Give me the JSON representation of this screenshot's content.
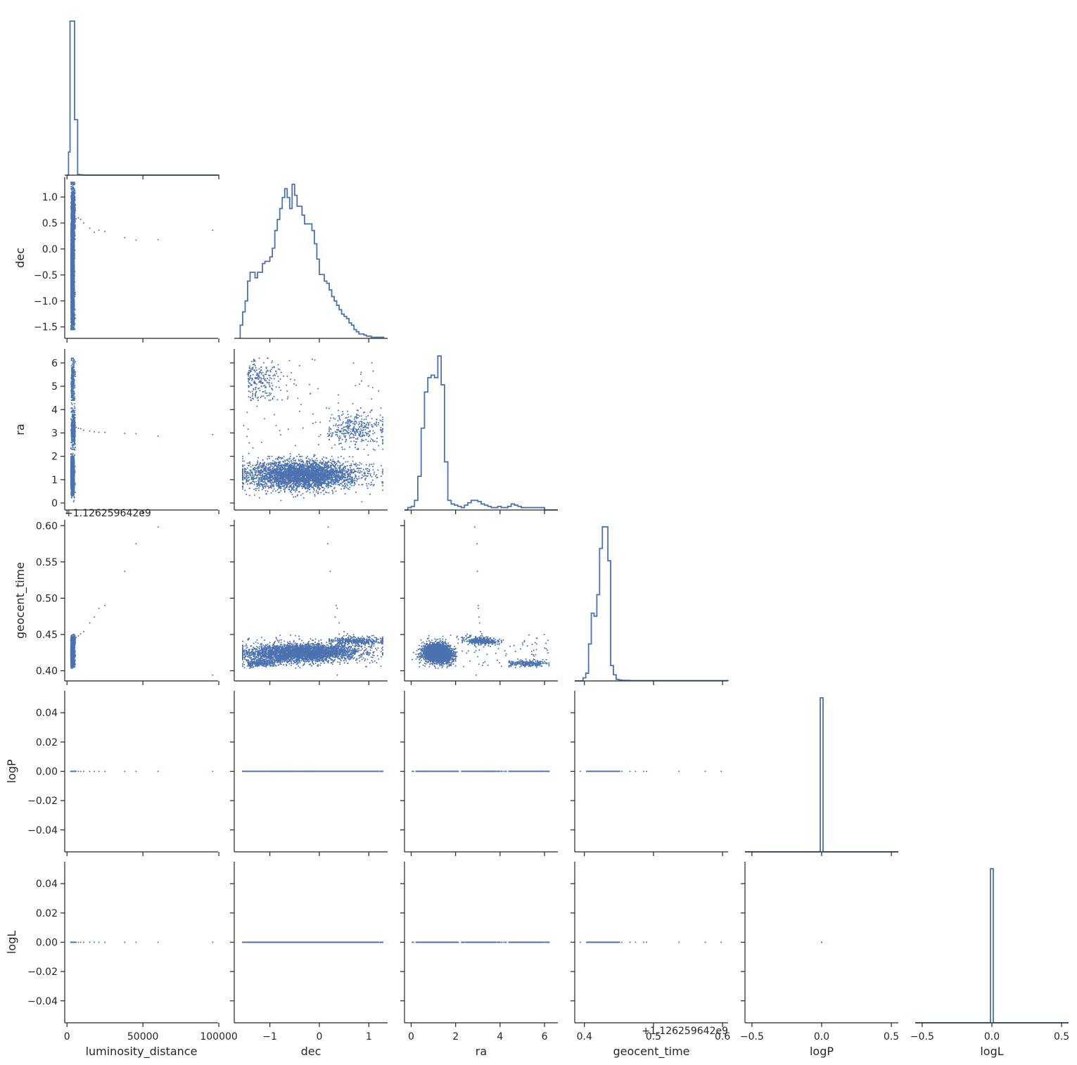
{
  "chart_data": {
    "type": "scatter",
    "layout": "corner-pairplot",
    "variables": [
      "luminosity_distance",
      "dec",
      "ra",
      "geocent_time",
      "logP",
      "logL"
    ],
    "marker_color": "#4c72b0",
    "grid": false,
    "axes": {
      "luminosity_distance": {
        "label": "luminosity_distance",
        "range": [
          -1500,
          99500
        ],
        "ticks": [
          0,
          50000,
          100000
        ],
        "tick_labels": [
          "0",
          "50000",
          "100000"
        ]
      },
      "dec": {
        "label": "dec",
        "range": [
          -1.72,
          1.38
        ],
        "ticks": [
          -1.5,
          -1.0,
          -0.5,
          0.0,
          0.5,
          1.0
        ],
        "tick_labels": [
          "−1.5",
          "−1.0",
          "−0.5",
          "0.0",
          "0.5",
          "1.0"
        ],
        "x_ticks": [
          -1,
          0,
          1
        ],
        "x_tick_labels": [
          "−1",
          "0",
          "1"
        ]
      },
      "ra": {
        "label": "ra",
        "range": [
          -0.3,
          6.6
        ],
        "ticks": [
          0,
          1,
          2,
          3,
          4,
          5,
          6
        ],
        "tick_labels": [
          "0",
          "1",
          "2",
          "3",
          "4",
          "5",
          "6"
        ],
        "x_ticks": [
          0,
          2,
          4,
          6
        ],
        "x_tick_labels": [
          "0",
          "2",
          "4",
          "6"
        ]
      },
      "geocent_time": {
        "label": "geocent_time",
        "offset_label": "+1.126259642e9",
        "range": [
          0.386,
          0.608
        ],
        "ticks": [
          0.4,
          0.45,
          0.5,
          0.55,
          0.6
        ],
        "tick_labels": [
          "0.40",
          "0.45",
          "0.50",
          "0.55",
          "0.60"
        ],
        "x_ticks": [
          0.4,
          0.5,
          0.6
        ],
        "x_tick_labels": [
          "0.4",
          "0.5",
          "0.6"
        ]
      },
      "logP": {
        "label": "logP",
        "range": [
          -0.055,
          0.055
        ],
        "ticks": [
          -0.04,
          -0.02,
          0.0,
          0.02,
          0.04
        ],
        "tick_labels": [
          "−0.04",
          "−0.02",
          "0.00",
          "0.02",
          "0.04"
        ],
        "x_ticks": [
          -0.5,
          0.0,
          0.5
        ],
        "x_tick_labels": [
          "−0.5",
          "0.0",
          "0.5"
        ],
        "x_range": [
          -0.55,
          0.55
        ]
      },
      "logL": {
        "label": "logL",
        "range": [
          -0.055,
          0.055
        ],
        "ticks": [
          -0.04,
          -0.02,
          0.0,
          0.02,
          0.04
        ],
        "tick_labels": [
          "−0.04",
          "−0.02",
          "0.00",
          "0.02",
          "0.04"
        ],
        "x_ticks": [
          -0.5,
          0.0,
          0.5
        ],
        "x_tick_labels": [
          "−0.5",
          "0.0",
          "0.5"
        ],
        "x_range": [
          -0.55,
          0.55
        ]
      }
    },
    "histograms": {
      "luminosity_distance": {
        "bin_edges": [
          0,
          1000,
          2000,
          3000,
          4000,
          5000,
          6000,
          7000,
          8000,
          9000,
          10000,
          11000,
          100000
        ],
        "counts": [
          0,
          0.15,
          1.0,
          1.0,
          1.0,
          0.36,
          0.36,
          0.005,
          0.003,
          0.002,
          0.001,
          0.0005
        ]
      },
      "dec": {
        "bin_edges": [
          -1.6,
          -1.55,
          -1.5,
          -1.45,
          -1.4,
          -1.35,
          -1.3,
          -1.25,
          -1.2,
          -1.15,
          -1.1,
          -1.05,
          -1.0,
          -0.95,
          -0.9,
          -0.85,
          -0.8,
          -0.75,
          -0.7,
          -0.65,
          -0.6,
          -0.55,
          -0.5,
          -0.45,
          -0.4,
          -0.35,
          -0.3,
          -0.25,
          -0.2,
          -0.15,
          -0.1,
          -0.05,
          0.0,
          0.05,
          0.1,
          0.15,
          0.2,
          0.25,
          0.3,
          0.35,
          0.4,
          0.45,
          0.5,
          0.55,
          0.6,
          0.65,
          0.7,
          0.75,
          0.8,
          0.85,
          0.9,
          0.95,
          1.0,
          1.05,
          1.1,
          1.15,
          1.2,
          1.25,
          1.3
        ],
        "counts": [
          0.12,
          0.24,
          0.34,
          0.52,
          0.6,
          0.6,
          0.55,
          0.6,
          0.6,
          0.68,
          0.7,
          0.7,
          0.74,
          0.82,
          0.98,
          1.08,
          1.18,
          1.28,
          1.36,
          1.28,
          1.18,
          1.4,
          1.3,
          1.2,
          1.2,
          1.12,
          1.04,
          1.04,
          1.04,
          0.98,
          0.86,
          0.72,
          0.58,
          0.58,
          0.52,
          0.5,
          0.44,
          0.38,
          0.34,
          0.3,
          0.26,
          0.22,
          0.2,
          0.18,
          0.14,
          0.12,
          0.08,
          0.06,
          0.04,
          0.04,
          0.03,
          0.02,
          0.02,
          0.01,
          0.01,
          0.01,
          0.01,
          0.01
        ]
      },
      "ra": {
        "bin_edges": [
          -0.3,
          -0.15,
          0.0,
          0.15,
          0.3,
          0.45,
          0.6,
          0.75,
          0.9,
          1.05,
          1.2,
          1.35,
          1.5,
          1.65,
          1.8,
          1.95,
          2.1,
          2.25,
          2.4,
          2.55,
          2.7,
          2.85,
          3.0,
          3.15,
          3.3,
          3.45,
          3.6,
          3.75,
          3.9,
          4.05,
          4.2,
          4.35,
          4.5,
          4.65,
          4.8,
          4.95,
          5.1,
          5.25,
          5.4,
          5.55,
          5.7,
          5.85,
          6.0,
          6.15,
          6.3,
          6.6
        ],
        "counts": [
          0,
          0.02,
          0.03,
          0.08,
          0.28,
          0.68,
          0.98,
          1.1,
          1.12,
          1.1,
          1.28,
          1.04,
          0.4,
          0.08,
          0.05,
          0.04,
          0.03,
          0.02,
          0.04,
          0.06,
          0.08,
          0.08,
          0.07,
          0.05,
          0.04,
          0.03,
          0.02,
          0.02,
          0.03,
          0.02,
          0.02,
          0.03,
          0.05,
          0.04,
          0.03,
          0.02,
          0.02,
          0.02,
          0.02,
          0.02,
          0.02,
          0.02,
          0.0,
          0.0,
          0.0
        ]
      },
      "geocent_time": {
        "bin_edges": [
          0.386,
          0.398,
          0.402,
          0.406,
          0.41,
          0.414,
          0.418,
          0.422,
          0.426,
          0.43,
          0.434,
          0.438,
          0.442,
          0.446,
          0.45,
          0.454,
          0.466,
          0.608
        ],
        "counts": [
          0,
          0.02,
          0.05,
          0.24,
          0.44,
          0.42,
          0.56,
          0.86,
          1.0,
          1.0,
          0.78,
          0.1,
          0.04,
          0.01,
          0.006,
          0.004,
          0.002
        ]
      },
      "logP": {
        "bin_edges": [
          -0.55,
          -0.01,
          0.01,
          0.55
        ],
        "counts": [
          0,
          1.0,
          0
        ]
      },
      "logL": {
        "bin_edges": [
          -0.55,
          -0.01,
          0.01,
          0.55
        ],
        "counts": [
          0,
          1.0,
          0
        ]
      }
    }
  }
}
